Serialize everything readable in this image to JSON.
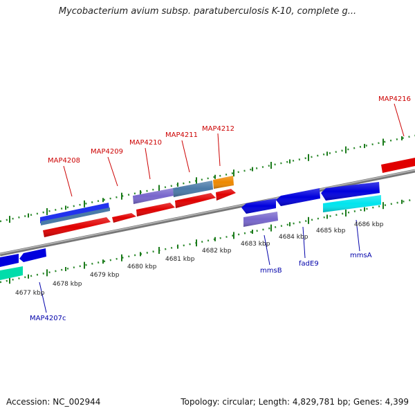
{
  "title": "Mycobacterium avium subsp. paratuberculosis K-10, complete g...",
  "footer": {
    "accession": "Accession: NC_002944",
    "topology": "Topology: circular; Length: 4,829,781 bp; Genes: 4,399"
  },
  "ticks": [
    "4677 kbp",
    "4678 kbp",
    "4679 kbp",
    "4680 kbp",
    "4681 kbp",
    "4682 kbp",
    "4683 kbp",
    "4684 kbp",
    "4685 kbp",
    "4686 kbp"
  ],
  "upper_labels": [
    "MAP4208",
    "MAP4209",
    "MAP4210",
    "MAP4211",
    "MAP4212",
    "MAP4216"
  ],
  "lower_labels": [
    "MAP4207c",
    "mmsB",
    "fadE9",
    "mmsA"
  ],
  "colors": {
    "forward_gene": "#e00000",
    "reverse_gene": "#0000dd",
    "cds_blue": "#2233ee",
    "cds_steel": "#4a7aa8",
    "cds_purple": "#7766cc",
    "cds_orange": "#ee8800",
    "cds_cyan": "#00e5ee",
    "cds_teal": "#00ddaa",
    "backbone": "#888888",
    "tick_green": "#1a7a1a",
    "upper_label": "#cc0000",
    "lower_label": "#0000aa"
  }
}
